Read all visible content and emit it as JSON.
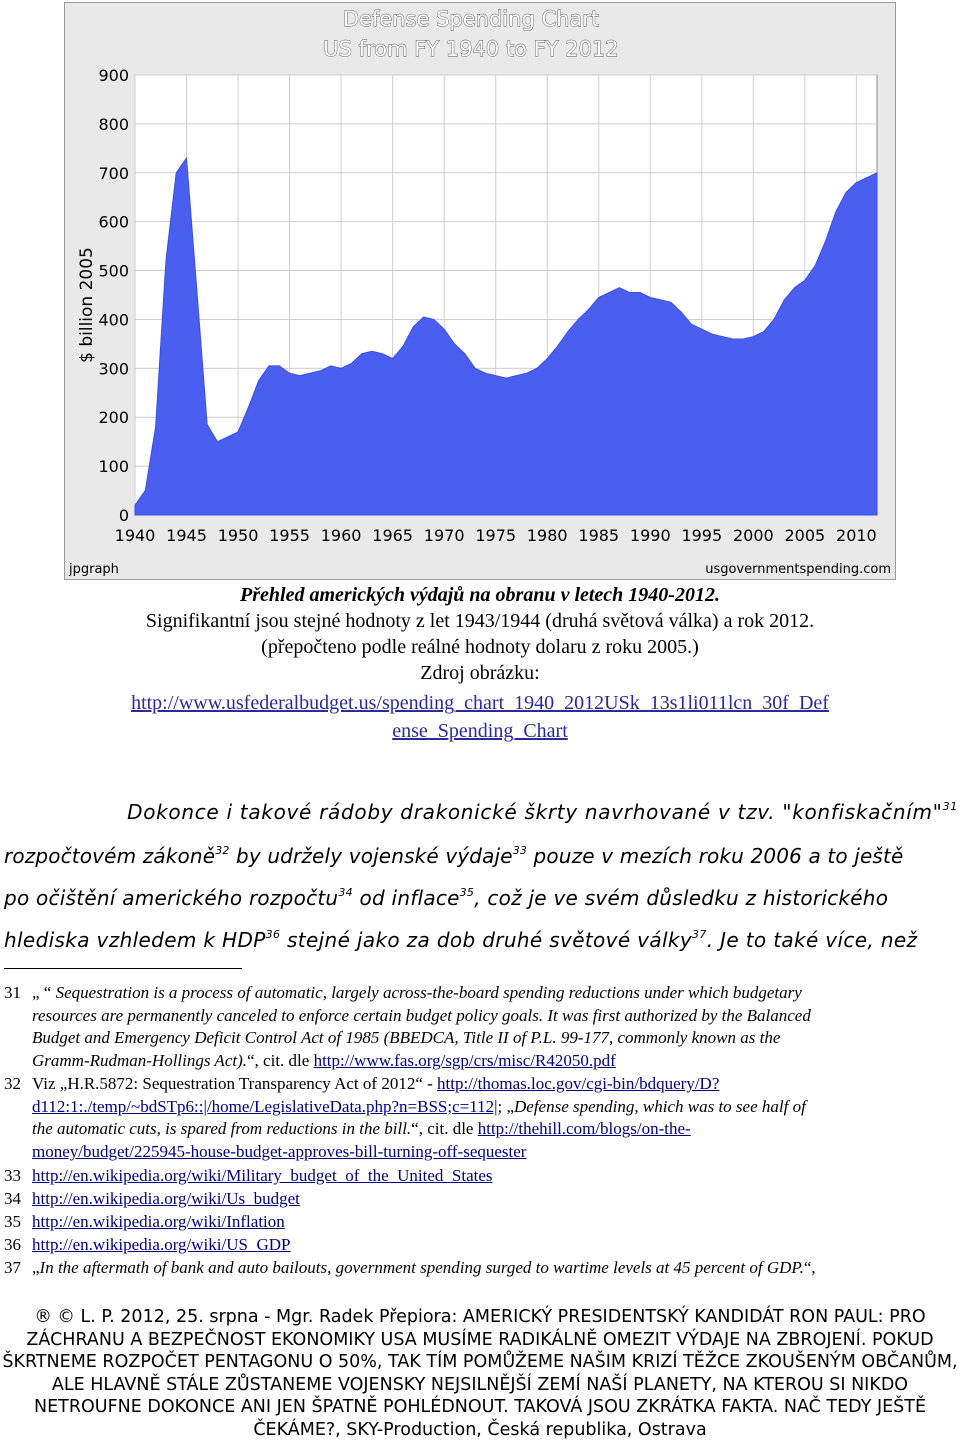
{
  "chart_data": {
    "type": "area",
    "title": "Defense Spending Chart",
    "subtitle": "US from FY 1940 to FY 2012",
    "ylabel": "$ billion 2005",
    "xlabel": "",
    "xlim": [
      1940,
      2012
    ],
    "ylim": [
      0,
      900
    ],
    "x_ticks": [
      1940,
      1945,
      1950,
      1955,
      1960,
      1965,
      1970,
      1975,
      1980,
      1985,
      1990,
      1995,
      2000,
      2005,
      2010
    ],
    "y_ticks": [
      0,
      100,
      200,
      300,
      400,
      500,
      600,
      700,
      800,
      900
    ],
    "grid": true,
    "color": "#4a5ff0",
    "x": [
      1940,
      1941,
      1942,
      1943,
      1944,
      1945,
      1946,
      1947,
      1948,
      1949,
      1950,
      1951,
      1952,
      1953,
      1954,
      1955,
      1956,
      1957,
      1958,
      1959,
      1960,
      1961,
      1962,
      1963,
      1964,
      1965,
      1966,
      1967,
      1968,
      1969,
      1970,
      1971,
      1972,
      1973,
      1974,
      1975,
      1976,
      1977,
      1978,
      1979,
      1980,
      1981,
      1982,
      1983,
      1984,
      1985,
      1986,
      1987,
      1988,
      1989,
      1990,
      1991,
      1992,
      1993,
      1994,
      1995,
      1996,
      1997,
      1998,
      1999,
      2000,
      2001,
      2002,
      2003,
      2004,
      2005,
      2006,
      2007,
      2008,
      2009,
      2010,
      2011,
      2012
    ],
    "values": [
      20,
      50,
      180,
      520,
      700,
      730,
      460,
      185,
      150,
      160,
      170,
      220,
      275,
      305,
      305,
      290,
      285,
      290,
      295,
      305,
      300,
      310,
      330,
      335,
      330,
      320,
      345,
      385,
      405,
      400,
      380,
      350,
      330,
      300,
      290,
      285,
      280,
      285,
      290,
      300,
      320,
      345,
      375,
      400,
      420,
      445,
      455,
      465,
      455,
      455,
      445,
      440,
      435,
      415,
      390,
      380,
      370,
      365,
      360,
      360,
      365,
      375,
      400,
      440,
      465,
      480,
      510,
      560,
      620,
      660,
      680,
      690,
      700
    ],
    "watermark_left": "jpgraph",
    "watermark_right": "usgovernmentspending.com"
  },
  "caption": {
    "title": "Přehled amerických výdajů na obranu v letech 1940-2012.",
    "line2": "Signifikantní jsou stejné hodnoty z let 1943/1944 (druhá světová válka) a rok 2012.",
    "line3": "(přepočteno podle reálné hodnoty dolaru z roku 2005.)",
    "line4": "Zdroj obrázku:",
    "link1": "http://www.usfederalbudget.us/spending_chart_1940_2012USk_13s1li011lcn_30f_Def",
    "link2": "ense_Spending_Chart"
  },
  "body": {
    "l1_text": "Dokonce i takové rádoby drakonické škrty navrhované v tzv. \"konfiskačním\"",
    "l1_sup": "31",
    "l2_a": "rozpočtovém zákoně",
    "l2_sup1": "32",
    "l2_b": " by udržely vojenské výdaje",
    "l2_sup2": "33",
    "l2_c": " pouze v mezích roku 2006 a to ještě",
    "l3_a": "po očištění amerického rozpočtu",
    "l3_sup1": "34",
    "l3_b": " od inflace",
    "l3_sup2": "35",
    "l3_c": ", což je ve svém důsledku z historického",
    "l4_a": "hlediska vzhledem k HDP",
    "l4_sup1": "36",
    "l4_b": " stejné jako za dob druhé světové války",
    "l4_sup2": "37",
    "l4_c": ". Je to také více, než"
  },
  "footnotes": {
    "fn31": {
      "num": "31",
      "q1": "„ “",
      "em1": "Sequestration",
      "em2": " is a process of automatic, largely across-the-board spending reductions under which budgetary",
      "em3": "resources are permanently canceled to enforce certain budget policy goals. It was first authorized by the Balanced",
      "em4": "Budget and Emergency Deficit Control Act of 1985 (BBEDCA, Title II of P.L. 99-177, commonly known as the",
      "em5": "Gramm-Rudman-Hollings Act).",
      "tail": "“, cit. dle ",
      "link": "http://www.fas.org/sgp/crs/misc/R42050.pdf"
    },
    "fn32": {
      "num": "32",
      "a": "Viz „H.R.5872: Sequestration Transparency Act of 2012“ - ",
      "link1": "http://thomas.loc.gov/cgi-bin/bdquery/D?",
      "link2": "d112:1:./temp/~bdSTp6::|/home/LegislativeData.php?n=BSS;c=112|",
      "b": "; „",
      "em1": "Defense spending, which was to see half of",
      "em2": "the automatic cuts, is spared from reductions in the bill.",
      "c": "“, cit. dle ",
      "link3": "http://thehill.com/blogs/on-the-",
      "link4": "money/budget/225945-house-budget-approves-bill-turning-off-sequester"
    },
    "fn33": {
      "num": "33",
      "link": "http://en.wikipedia.org/wiki/Military_budget_of_the_United_States"
    },
    "fn34": {
      "num": "34",
      "link": "http://en.wikipedia.org/wiki/Us_budget"
    },
    "fn35": {
      "num": "35",
      "link": "http://en.wikipedia.org/wiki/Inflation"
    },
    "fn36": {
      "num": "36",
      "link": "http://en.wikipedia.org/wiki/US_GDP"
    },
    "fn37": {
      "num": "37",
      "a": "„",
      "em": "In the aftermath of bank and auto bailouts, government spending surged to wartime levels at 45 percent of GDP.",
      "b": "“,"
    }
  },
  "footer": {
    "line1": "® © L. P. 2012, 25. srpna - Mgr. Radek Přepiora: AMERICKÝ PRESIDENTSKÝ KANDIDÁT RON PAUL: PRO",
    "line2": "ZÁCHRANU A BEZPEČNOST EKONOMIKY USA MUSÍME RADIKÁLNĚ OMEZIT VÝDAJE NA ZBROJENÍ. POKUD",
    "line3": "ŠKRTNEME ROZPOČET PENTAGONU O 50%, TAK TÍM POMŮŽEME NAŠIM KRIZÍ TĚŽCE ZKOUŠENÝM OBČANŮM,",
    "line4": "ALE HLAVNĚ STÁLE ZŮSTANEME VOJENSKY NEJSILNĚJŠÍ ZEMÍ NAŠÍ PLANETY, NA KTEROU SI NIKDO",
    "line5": "NETROUFNE DOKONCE ANI JEN ŠPATNĚ POHLÉDNOUT. TAKOVÁ JSOU ZKRÁTKA FAKTA. NAČ TEDY JEŠTĚ",
    "line6": "ČEKÁME?, SKY-Production, Česká republika, Ostrava"
  }
}
